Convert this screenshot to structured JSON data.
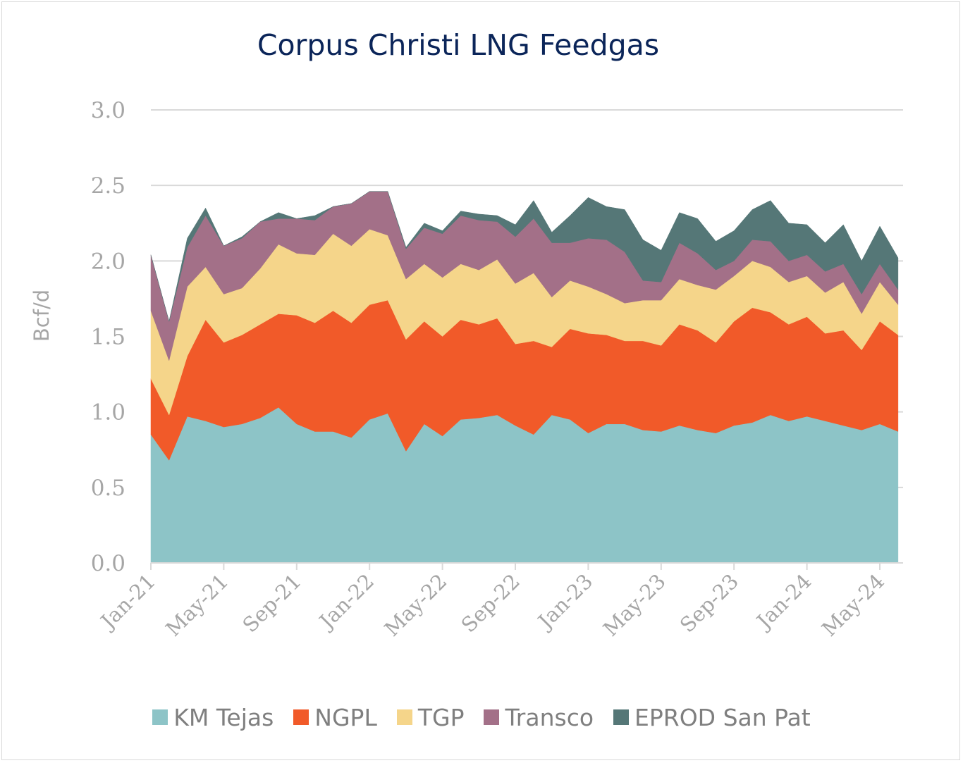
{
  "chart_data": {
    "type": "area",
    "stacked": true,
    "title": "Corpus Christi LNG Feedgas",
    "ylabel": "Bcf/d",
    "xlabel": "",
    "ylim": [
      0,
      3
    ],
    "yticks": [
      "0.0",
      "0.5",
      "1.0",
      "1.5",
      "2.0",
      "2.5",
      "3.0"
    ],
    "grid": true,
    "legend_position": "bottom",
    "x_start": "Jan-21",
    "x_ticks": [
      "Jan-21",
      "May-21",
      "Sep-21",
      "Jan-22",
      "May-22",
      "Sep-22",
      "Jan-23",
      "May-23",
      "Sep-23",
      "Jan-24",
      "May-24"
    ],
    "x": [
      "Jan-21",
      "Feb-21",
      "Mar-21",
      "Apr-21",
      "May-21",
      "Jun-21",
      "Jul-21",
      "Aug-21",
      "Sep-21",
      "Oct-21",
      "Nov-21",
      "Dec-21",
      "Jan-22",
      "Feb-22",
      "Mar-22",
      "Apr-22",
      "May-22",
      "Jun-22",
      "Jul-22",
      "Aug-22",
      "Sep-22",
      "Oct-22",
      "Nov-22",
      "Dec-22",
      "Jan-23",
      "Feb-23",
      "Mar-23",
      "Apr-23",
      "May-23",
      "Jun-23",
      "Jul-23",
      "Aug-23",
      "Sep-23",
      "Oct-23",
      "Nov-23",
      "Dec-23",
      "Jan-24",
      "Feb-24",
      "Mar-24",
      "Apr-24",
      "May-24",
      "Jun-24"
    ],
    "series": [
      {
        "name": "KM Tejas",
        "color": "#8dc4c7",
        "values": [
          0.85,
          0.68,
          0.97,
          0.94,
          0.9,
          0.92,
          0.96,
          1.03,
          0.92,
          0.87,
          0.87,
          0.83,
          0.95,
          0.99,
          0.74,
          0.92,
          0.84,
          0.95,
          0.96,
          0.98,
          0.91,
          0.85,
          0.98,
          0.95,
          0.86,
          0.92,
          0.92,
          0.88,
          0.87,
          0.91,
          0.88,
          0.86,
          0.91,
          0.93,
          0.98,
          0.94,
          0.97,
          0.94,
          0.91,
          0.88,
          0.92,
          0.87
        ]
      },
      {
        "name": "NGPL",
        "color": "#f15a29",
        "values": [
          0.37,
          0.3,
          0.4,
          0.67,
          0.56,
          0.59,
          0.62,
          0.62,
          0.72,
          0.72,
          0.8,
          0.76,
          0.76,
          0.75,
          0.74,
          0.68,
          0.66,
          0.66,
          0.62,
          0.64,
          0.54,
          0.62,
          0.45,
          0.6,
          0.66,
          0.59,
          0.55,
          0.59,
          0.57,
          0.67,
          0.66,
          0.6,
          0.69,
          0.76,
          0.68,
          0.64,
          0.66,
          0.58,
          0.63,
          0.53,
          0.68,
          0.64
        ]
      },
      {
        "name": "TGP",
        "color": "#f5d58a",
        "values": [
          0.45,
          0.36,
          0.46,
          0.35,
          0.32,
          0.31,
          0.37,
          0.46,
          0.41,
          0.45,
          0.51,
          0.51,
          0.5,
          0.43,
          0.4,
          0.38,
          0.39,
          0.37,
          0.36,
          0.39,
          0.4,
          0.45,
          0.33,
          0.32,
          0.31,
          0.27,
          0.25,
          0.27,
          0.3,
          0.3,
          0.3,
          0.35,
          0.3,
          0.31,
          0.3,
          0.28,
          0.27,
          0.27,
          0.32,
          0.24,
          0.26,
          0.2
        ]
      },
      {
        "name": "Transco",
        "color": "#a37088",
        "values": [
          0.37,
          0.26,
          0.26,
          0.34,
          0.32,
          0.33,
          0.31,
          0.17,
          0.23,
          0.23,
          0.18,
          0.28,
          0.25,
          0.29,
          0.2,
          0.24,
          0.29,
          0.32,
          0.33,
          0.25,
          0.31,
          0.36,
          0.36,
          0.25,
          0.32,
          0.36,
          0.34,
          0.13,
          0.12,
          0.24,
          0.21,
          0.13,
          0.1,
          0.14,
          0.17,
          0.14,
          0.14,
          0.14,
          0.12,
          0.13,
          0.12,
          0.1
        ]
      },
      {
        "name": "EPROD San Pat",
        "color": "#557777",
        "values": [
          0.0,
          0.0,
          0.06,
          0.05,
          0.0,
          0.01,
          0.0,
          0.04,
          0.0,
          0.03,
          0.0,
          0.0,
          0.0,
          0.0,
          0.01,
          0.03,
          0.02,
          0.03,
          0.04,
          0.04,
          0.08,
          0.12,
          0.07,
          0.18,
          0.27,
          0.22,
          0.28,
          0.27,
          0.21,
          0.2,
          0.23,
          0.19,
          0.2,
          0.2,
          0.27,
          0.25,
          0.2,
          0.19,
          0.26,
          0.22,
          0.25,
          0.21
        ]
      }
    ]
  }
}
